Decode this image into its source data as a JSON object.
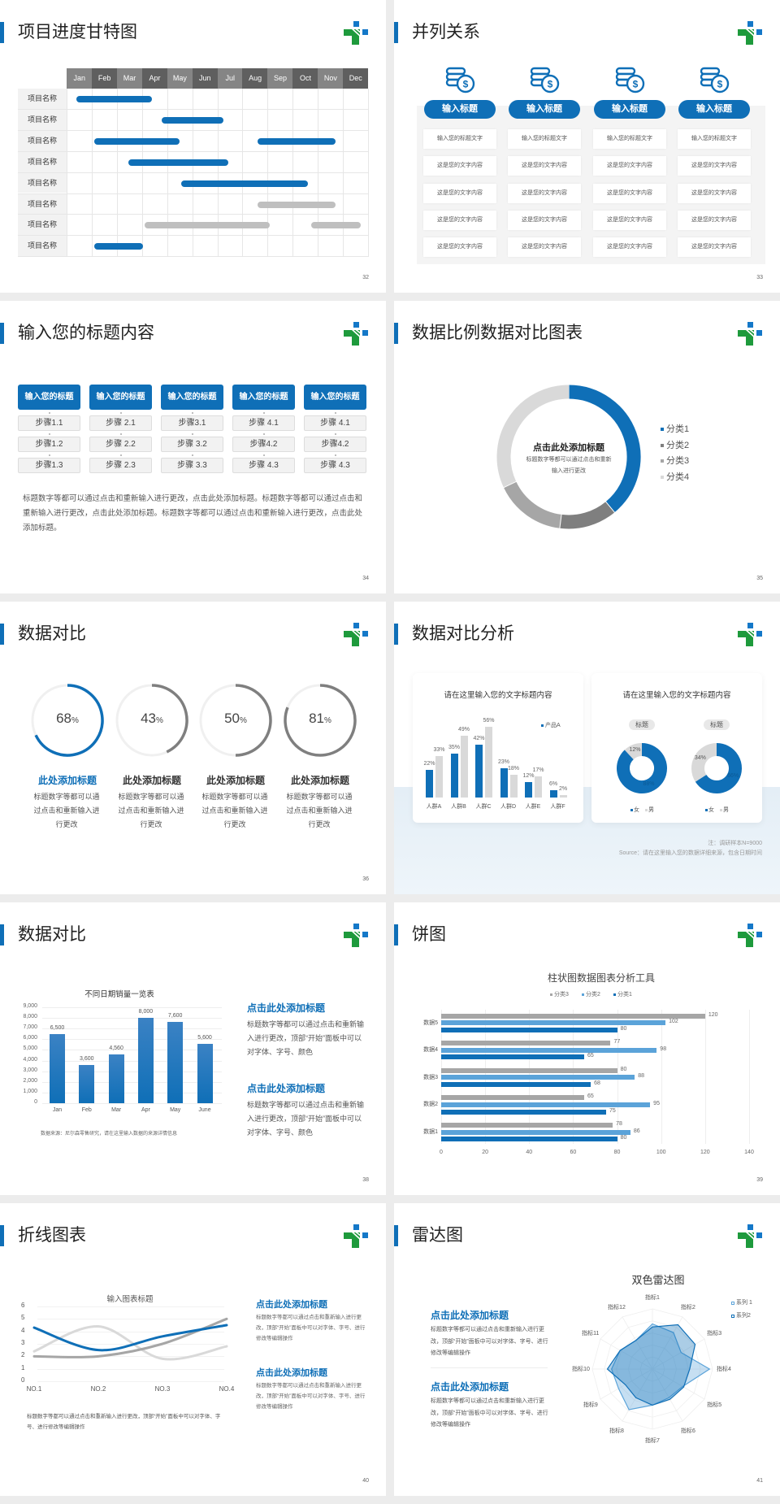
{
  "colors": {
    "accent": "#0f6fb7",
    "mid_blue": "#5ba3d9",
    "gray_dark": "#7f7f7f",
    "gray_mid": "#a6a6a6",
    "gray_light": "#d9d9d9",
    "logo_green": "#1e9a3c",
    "logo_blue": "#1478c8"
  },
  "slides": [
    {
      "title": "项目进度甘特图",
      "page": "32",
      "months": [
        "Jan",
        "Feb",
        "Mar",
        "Apr",
        "May",
        "Jun",
        "Jul",
        "Aug",
        "Sep",
        "Oct",
        "Nov",
        "Dec"
      ],
      "rows": [
        {
          "label": "项目名称",
          "bars": [
            {
              "start": 0.4,
              "end": 3.4,
              "color": "blue"
            }
          ]
        },
        {
          "label": "项目名称",
          "bars": [
            {
              "start": 3.8,
              "end": 6.25,
              "color": "blue"
            }
          ]
        },
        {
          "label": "项目名称",
          "bars": [
            {
              "start": 1.1,
              "end": 4.5,
              "color": "blue"
            },
            {
              "start": 7.6,
              "end": 10.7,
              "color": "blue"
            }
          ]
        },
        {
          "label": "项目名称",
          "bars": [
            {
              "start": 2.45,
              "end": 6.45,
              "color": "blue"
            }
          ]
        },
        {
          "label": "项目名称",
          "bars": [
            {
              "start": 4.55,
              "end": 9.6,
              "color": "blue"
            }
          ]
        },
        {
          "label": "项目名称",
          "bars": [
            {
              "start": 7.6,
              "end": 10.7,
              "color": "gray"
            }
          ]
        },
        {
          "label": "项目名称",
          "bars": [
            {
              "start": 3.1,
              "end": 8.1,
              "color": "gray"
            },
            {
              "start": 9.75,
              "end": 11.7,
              "color": "gray"
            }
          ]
        },
        {
          "label": "项目名称",
          "bars": [
            {
              "start": 1.1,
              "end": 3.05,
              "color": "blue"
            }
          ]
        }
      ]
    },
    {
      "title": "并列关系",
      "page": "33",
      "columns": [
        {
          "icon": "coins-dollar-icon",
          "heading": "输入标题",
          "cells": [
            "输入您的标题文字",
            "这是您的文字内容",
            "这是您的文字内容",
            "这是您的文字内容",
            "这是您的文字内容"
          ]
        },
        {
          "icon": "coins-dollar-icon",
          "heading": "输入标题",
          "cells": [
            "输入您的标题文字",
            "这是您的文字内容",
            "这是您的文字内容",
            "这是您的文字内容",
            "这是您的文字内容"
          ]
        },
        {
          "icon": "coins-dollar-icon",
          "heading": "输入标题",
          "cells": [
            "输入您的标题文字",
            "这是您的文字内容",
            "这是您的文字内容",
            "这是您的文字内容",
            "这是您的文字内容"
          ]
        },
        {
          "icon": "coins-dollar-icon",
          "heading": "输入标题",
          "cells": [
            "输入您的标题文字",
            "这是您的文字内容",
            "这是您的文字内容",
            "这是您的文字内容",
            "这是您的文字内容"
          ]
        }
      ]
    },
    {
      "title": "输入您的标题内容",
      "page": "34",
      "columns": [
        {
          "heading": "输入您的标题",
          "steps": [
            "步骤1.1",
            "步骤1.2",
            "步骤1.3"
          ]
        },
        {
          "heading": "输入您的标题",
          "steps": [
            "步骤 2.1",
            "步骤 2.2",
            "步骤 2.3"
          ]
        },
        {
          "heading": "输入您的标题",
          "steps": [
            "步骤3.1",
            "步骤 3.2",
            "步骤 3.3"
          ]
        },
        {
          "heading": "输入您的标题",
          "steps": [
            "步骤 4.1",
            "步骤4.2",
            "步骤 4.3"
          ]
        },
        {
          "heading": "输入您的标题",
          "steps": [
            "步骤 4.1",
            "步骤4.2",
            "步骤 4.3"
          ]
        }
      ],
      "paragraph": "标题数字等都可以通过点击和重新输入进行更改，点击此处添加标题。标题数字等都可以通过点击和重新输入进行更改，点击此处添加标题。标题数字等都可以通过点击和重新输入进行更改，点击此处添加标题。"
    },
    {
      "title": "数据比例数据对比图表",
      "page": "35",
      "center_title": "点击此处添加标题",
      "center_text": "标题数字等都可以通过点击和重新输入进行更改"
    },
    {
      "title": "数据对比",
      "page": "36",
      "items": [
        {
          "value": 68,
          "unit": "%",
          "title": "此处添加标题",
          "desc": "标题数字等都可以通过点击和重新输入进行更改",
          "highlight": true
        },
        {
          "value": 43,
          "unit": "%",
          "title": "此处添加标题",
          "desc": "标题数字等都可以通过点击和重新输入进行更改",
          "highlight": false
        },
        {
          "value": 50,
          "unit": "%",
          "title": "此处添加标题",
          "desc": "标题数字等都可以通过点击和重新输入进行更改",
          "highlight": false
        },
        {
          "value": 81,
          "unit": "%",
          "title": "此处添加标题",
          "desc": "标题数字等都可以通过点击和重新输入进行更改",
          "highlight": false
        }
      ]
    },
    {
      "title": "数据对比分析",
      "page": "37",
      "note": "注：调研样本N=9000",
      "source": "Source：请在这里输入您的数据详细来源，包含日期时间"
    },
    {
      "title": "数据对比",
      "page": "38",
      "blocks": [
        {
          "heading": "点击此处添加标题",
          "text": "标题数字等都可以通过点击和重新输入进行更改，顶部“开始”面板中可以对字体、字号、颜色"
        },
        {
          "heading": "点击此处添加标题",
          "text": "标题数字等都可以通过点击和重新输入进行更改，顶部“开始”面板中可以对字体、字号、颜色"
        }
      ]
    },
    {
      "title": "饼图",
      "page": "39"
    },
    {
      "title": "折线图表",
      "page": "40",
      "blocks": [
        {
          "heading": "点击此处添加标题",
          "text": "标题数字等都可以通过点击和重新输入进行更改，顶部“开始”面板中可以对字体、字号、进行修改等编辑操作"
        },
        {
          "heading": "点击此处添加标题",
          "text": "标题数字等都可以通过点击和重新输入进行更改，顶部“开始”面板中可以对字体、字号、进行修改等编辑操作"
        }
      ],
      "footnote": "标题数字等都可以通过点击和重新输入进行更改，顶部“开始”面板中可以对字体、字号、进行修改等编辑操作"
    },
    {
      "title": "雷达图",
      "page": "41",
      "blocks": [
        {
          "heading": "点击此处添加标题",
          "text": "标题数字等都可以通过点击和重新输入进行更改，顶部“开始”面板中可以对字体、字号、进行修改等编辑操作"
        },
        {
          "heading": "点击此处添加标题",
          "text": "标题数字等都可以通过点击和重新输入进行更改，顶部“开始”面板中可以对字体、字号、进行修改等编辑操作"
        }
      ]
    }
  ],
  "chart_data": [
    {
      "type": "pie",
      "donut": true,
      "categories": [
        "分类1",
        "分类2",
        "分类3",
        "分类4"
      ],
      "values": [
        39,
        13,
        16,
        32
      ],
      "colors": [
        "#0f6fb7",
        "#7f7f7f",
        "#a6a6a6",
        "#d9d9d9"
      ],
      "legend": "right"
    },
    {
      "type": "bar",
      "title": "请在这里输入您的文字标题内容",
      "categories": [
        "人群A",
        "人群B",
        "人群C",
        "人群D",
        "人群E",
        "人群F"
      ],
      "series": [
        {
          "name": "产品A",
          "values": [
            22,
            35,
            42,
            23,
            12,
            6
          ],
          "color": "#0f6fb7"
        },
        {
          "values": [
            33,
            49,
            56,
            18,
            17,
            2
          ],
          "color": "#d9d9d9"
        }
      ],
      "value_suffix": "%",
      "legend": "top-right"
    },
    {
      "type": "pie",
      "donut": true,
      "title": "请在这里输入您的文字标题内容",
      "categories": [
        "女",
        "男"
      ],
      "colors": [
        "#0f6fb7",
        "#d9d9d9"
      ],
      "legend": "bottom",
      "charts": [
        {
          "label": "标题",
          "values": [
            88,
            12
          ],
          "labels": [
            "88%",
            "12%"
          ]
        },
        {
          "label": "标题",
          "values": [
            66,
            34
          ],
          "labels": [
            "66%",
            "34%"
          ]
        }
      ]
    },
    {
      "type": "bar",
      "title": "不同日期销量一览表",
      "categories": [
        "Jan",
        "Feb",
        "Mar",
        "Apr",
        "May",
        "June"
      ],
      "values": [
        6500,
        3600,
        4560,
        8000,
        7600,
        5600
      ],
      "value_labels": [
        "6,500",
        "3,600",
        "4,560",
        "8,000",
        "7,600",
        "5,600"
      ],
      "ylim": [
        0,
        9000
      ],
      "yticks": [
        "0",
        "1,000",
        "2,000",
        "3,000",
        "4,000",
        "5,000",
        "6,000",
        "7,000",
        "8,000",
        "9,000"
      ],
      "grid": true,
      "source": "数据来源：尼尔森零售研究，请在这里输入数据的来源详情信息"
    },
    {
      "type": "bar",
      "orientation": "horizontal",
      "title": "柱状图数据图表分析工具",
      "categories": [
        "数据1",
        "数据2",
        "数据3",
        "数据4",
        "数据5"
      ],
      "series": [
        {
          "name": "分类3",
          "values": [
            78,
            65,
            80,
            77,
            120
          ],
          "color": "#a6a6a6"
        },
        {
          "name": "分类2",
          "values": [
            86,
            95,
            88,
            98,
            102
          ],
          "color": "#5ba3d9"
        },
        {
          "name": "分类1",
          "values": [
            80,
            75,
            68,
            65,
            80
          ],
          "color": "#0f6fb7"
        }
      ],
      "xlim": [
        0,
        140
      ],
      "xticks": [
        "0",
        "20",
        "40",
        "60",
        "80",
        "100",
        "120",
        "140"
      ],
      "grid": true,
      "legend": "top"
    },
    {
      "type": "line",
      "title": "输入图表标题",
      "categories": [
        "NO.1",
        "NO.2",
        "NO.3",
        "NO.4"
      ],
      "smooth": true,
      "ylim": [
        0,
        6
      ],
      "yticks": [
        "0",
        "1",
        "2",
        "3",
        "4",
        "5",
        "6"
      ],
      "series": [
        {
          "values": [
            4.3,
            2.5,
            3.6,
            4.5
          ],
          "color": "#0f6fb7"
        },
        {
          "values": [
            2.4,
            4.4,
            1.8,
            2.8
          ],
          "color": "#d9d9d9"
        },
        {
          "values": [
            2,
            2,
            3,
            5
          ],
          "color": "#a6a6a6"
        }
      ]
    },
    {
      "type": "radar",
      "title": "双色雷达图",
      "categories": [
        "指标1",
        "指标2",
        "指标3",
        "指标4",
        "指标5",
        "指标6",
        "指标7",
        "指标8",
        "指标9",
        "指标10",
        "指标11",
        "指标12"
      ],
      "rlim": [
        0,
        100
      ],
      "legend": "top-right",
      "series": [
        {
          "name": "系列 1",
          "values": [
            75,
            70,
            55,
            95,
            58,
            55,
            60,
            78,
            65,
            68,
            62,
            55
          ],
          "color": "#5ba3d9"
        },
        {
          "name": "系列2",
          "values": [
            70,
            85,
            82,
            62,
            60,
            58,
            60,
            55,
            52,
            75,
            62,
            55
          ],
          "color": "#0f6fb7"
        }
      ]
    }
  ]
}
